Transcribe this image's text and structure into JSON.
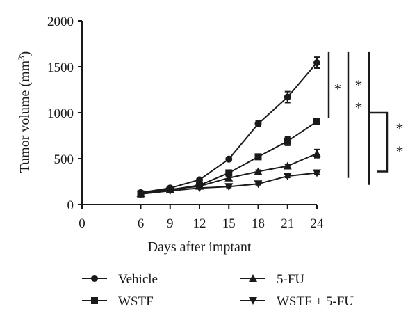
{
  "chart_data": {
    "type": "line",
    "title": "",
    "xlabel": "Days after imptant",
    "ylabel": "Tumor volume (mm3)",
    "ylabel_main": "Tumor volume (mm",
    "ylabel_sup": "3",
    "ylabel_close": ")",
    "x": [
      6,
      9,
      12,
      15,
      18,
      21,
      24
    ],
    "xlim": [
      0,
      24
    ],
    "ylim": [
      0,
      2000
    ],
    "xticks": [
      "0",
      "6",
      "9",
      "12",
      "15",
      "18",
      "21",
      "24"
    ],
    "yticks": [
      "0",
      "500",
      "1000",
      "1500",
      "2000"
    ],
    "grid": false,
    "legend_position": "bottom",
    "series": [
      {
        "name": "Vehicle",
        "marker": "circle",
        "values": [
          130,
          180,
          270,
          495,
          880,
          1170,
          1545
        ],
        "errors": [
          15,
          15,
          20,
          20,
          30,
          60,
          60
        ]
      },
      {
        "name": "WSTF",
        "marker": "square",
        "values": [
          115,
          160,
          210,
          345,
          520,
          690,
          905
        ],
        "errors": [
          10,
          10,
          15,
          15,
          20,
          45,
          20
        ]
      },
      {
        "name": "5-FU",
        "marker": "triangle-up",
        "values": [
          120,
          165,
          200,
          290,
          360,
          420,
          555
        ],
        "errors": [
          10,
          10,
          10,
          15,
          15,
          15,
          45
        ]
      },
      {
        "name": "WSTF + 5-FU",
        "marker": "triangle-down",
        "values": [
          115,
          150,
          180,
          195,
          225,
          310,
          345
        ],
        "errors": [
          10,
          10,
          10,
          10,
          10,
          15,
          15
        ]
      }
    ],
    "annotations": {
      "star": "*",
      "brackets": [
        {
          "from_series": "Vehicle",
          "to_series": "WSTF",
          "label": "*"
        },
        {
          "from_series": "Vehicle",
          "to_series": "5-FU",
          "label": "* *"
        },
        {
          "from_series": "Vehicle",
          "to_series": "WSTF + 5-FU",
          "label": "* *"
        }
      ]
    }
  }
}
